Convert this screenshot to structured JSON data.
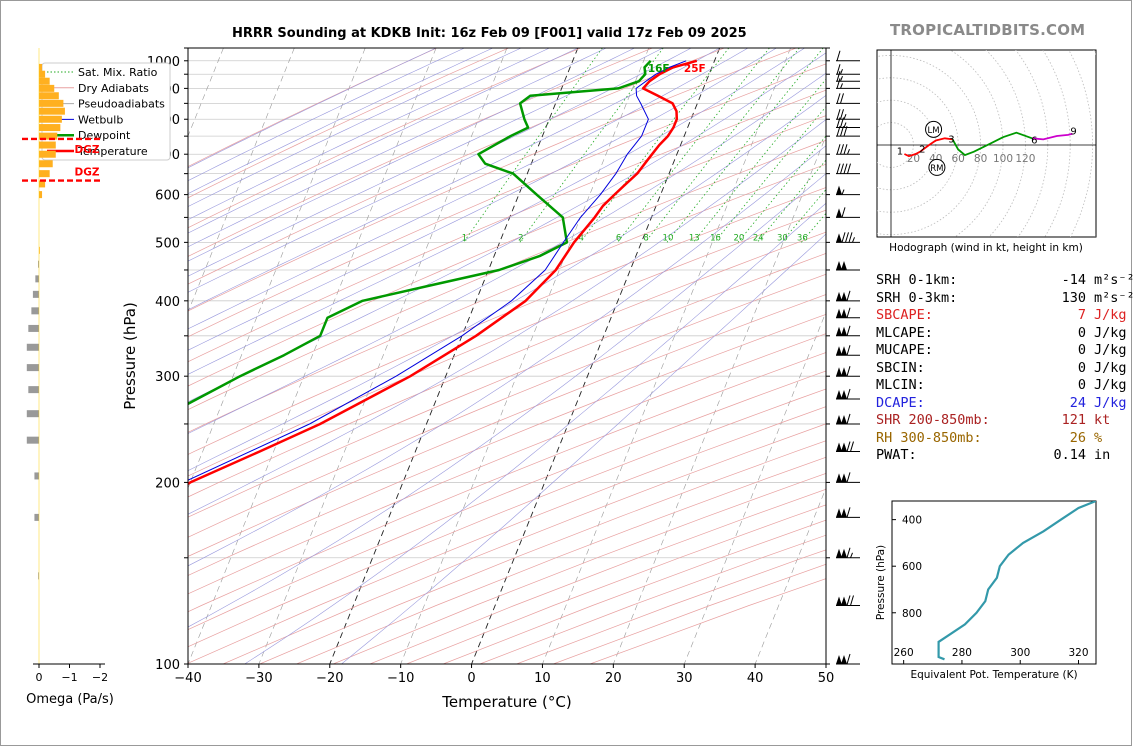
{
  "title": "HRRR Sounding at KDKB Init: 16z Feb 09 [F001] valid 17z Feb 09 2025",
  "brand": "TROPICALTIDBITS.COM",
  "chart_data": [
    {
      "type": "line",
      "name": "skew-t",
      "xlabel": "Temperature (°C)",
      "ylabel": "Pressure (hPa)",
      "xlim": [
        -40,
        50
      ],
      "ylim": [
        1050,
        100
      ],
      "y_scale": "log",
      "x_ticks": [
        "−40",
        "−30",
        "−20",
        "−10",
        "0",
        "10",
        "20",
        "30",
        "40",
        "50"
      ],
      "y_ticks": [
        1000,
        900,
        800,
        700,
        600,
        500,
        400,
        300,
        200,
        100
      ],
      "legend": [
        "Sat. Mix. Ratio",
        "Dry Adiabats",
        "Pseudoadiabats",
        "Wetbulb",
        "Dewpoint",
        "Temperature"
      ],
      "legend_position": "top-left",
      "mixing_ratio_labels": [
        "1",
        "2",
        "4",
        "6",
        "8",
        "10",
        "13",
        "16",
        "20",
        "24",
        "30",
        "36"
      ],
      "surface_labels": {
        "dewpoint": "16F",
        "temperature": "25F"
      },
      "series": [
        {
          "name": "Temperature",
          "color": "#ff0000",
          "points": [
            [
              1000,
              -2.5
            ],
            [
              975,
              -5.5
            ],
            [
              950,
              -7.0
            ],
            [
              925,
              -8.0
            ],
            [
              900,
              -8.5
            ],
            [
              875,
              -6.0
            ],
            [
              850,
              -3.5
            ],
            [
              825,
              -2.5
            ],
            [
              800,
              -2.0
            ],
            [
              775,
              -2.0
            ],
            [
              750,
              -2.3
            ],
            [
              725,
              -3.0
            ],
            [
              700,
              -3.5
            ],
            [
              675,
              -4.0
            ],
            [
              650,
              -4.5
            ],
            [
              625,
              -5.5
            ],
            [
              600,
              -6.5
            ],
            [
              575,
              -7.5
            ],
            [
              550,
              -8.0
            ],
            [
              500,
              -9.5
            ],
            [
              450,
              -10.5
            ],
            [
              400,
              -13.0
            ],
            [
              350,
              -18.0
            ],
            [
              300,
              -25.0
            ],
            [
              250,
              -35.0
            ],
            [
              225,
              -42.0
            ],
            [
              200,
              -50.0
            ],
            [
              175,
              -56.0
            ],
            [
              150,
              -60.0
            ],
            [
              125,
              -65.0
            ],
            [
              100,
              -70.0
            ]
          ]
        },
        {
          "name": "Dewpoint",
          "color": "#009900",
          "points": [
            [
              1000,
              -9.0
            ],
            [
              975,
              -9.5
            ],
            [
              950,
              -9.0
            ],
            [
              925,
              -9.5
            ],
            [
              900,
              -12.0
            ],
            [
              875,
              -24.0
            ],
            [
              850,
              -25.0
            ],
            [
              800,
              -23.5
            ],
            [
              775,
              -22.5
            ],
            [
              750,
              -24.5
            ],
            [
              700,
              -28.0
            ],
            [
              675,
              -26.5
            ],
            [
              650,
              -22.0
            ],
            [
              600,
              -17.5
            ],
            [
              550,
              -12.5
            ],
            [
              500,
              -10.5
            ],
            [
              475,
              -13.5
            ],
            [
              450,
              -18.5
            ],
            [
              425,
              -27.0
            ],
            [
              400,
              -36.0
            ],
            [
              375,
              -40.0
            ],
            [
              350,
              -40.0
            ],
            [
              325,
              -44.0
            ],
            [
              300,
              -49.0
            ],
            [
              250,
              -59.0
            ],
            [
              225,
              -68.0
            ],
            [
              200,
              -70.0
            ],
            [
              175,
              -76.0
            ],
            [
              150,
              -82.0
            ],
            [
              125,
              -86.0
            ],
            [
              100,
              -89.0
            ]
          ]
        },
        {
          "name": "Wetbulb",
          "color": "#0000dd",
          "points": [
            [
              1000,
              -4.0
            ],
            [
              975,
              -6.0
            ],
            [
              950,
              -7.5
            ],
            [
              925,
              -8.5
            ],
            [
              900,
              -9.5
            ],
            [
              875,
              -9.0
            ],
            [
              850,
              -8.0
            ],
            [
              800,
              -6.0
            ],
            [
              750,
              -6.0
            ],
            [
              700,
              -7.0
            ],
            [
              650,
              -7.5
            ],
            [
              600,
              -8.5
            ],
            [
              550,
              -10.0
            ],
            [
              500,
              -11.0
            ],
            [
              450,
              -12.0
            ],
            [
              400,
              -15.0
            ],
            [
              350,
              -20.0
            ],
            [
              300,
              -27.0
            ],
            [
              250,
              -36.5
            ],
            [
              200,
              -51.0
            ],
            [
              150,
              -61.0
            ],
            [
              100,
              -70.5
            ]
          ]
        }
      ]
    },
    {
      "type": "line",
      "name": "hodograph",
      "xlabel": "Hodograph (wind in kt, height in km)",
      "x_ticks": [
        "20",
        "40",
        "60",
        "80",
        "100",
        "120"
      ],
      "markers": [
        "LM",
        "RM"
      ],
      "height_labels": [
        "1",
        "2",
        "3",
        "6",
        "9"
      ],
      "series": [
        {
          "name": "0-1km",
          "color": "#ff0000",
          "points": [
            [
              12,
              -8
            ],
            [
              16,
              -10
            ],
            [
              22,
              -8
            ],
            [
              26,
              -6
            ]
          ]
        },
        {
          "name": "1-3km",
          "color": "#ff0000",
          "points": [
            [
              26,
              -6
            ],
            [
              34,
              0
            ],
            [
              40,
              4
            ],
            [
              48,
              6
            ],
            [
              55,
              5
            ]
          ]
        },
        {
          "name": "3-6km",
          "color": "#009900",
          "points": [
            [
              55,
              5
            ],
            [
              60,
              -4
            ],
            [
              66,
              -9
            ],
            [
              74,
              -6
            ],
            [
              88,
              1
            ],
            [
              100,
              7
            ],
            [
              112,
              11
            ],
            [
              126,
              6
            ]
          ]
        },
        {
          "name": "6-9km",
          "color": "#cc00cc",
          "points": [
            [
              126,
              6
            ],
            [
              136,
              5
            ],
            [
              148,
              8
            ],
            [
              158,
              9
            ],
            [
              162,
              10
            ]
          ]
        }
      ]
    },
    {
      "type": "line",
      "name": "theta-e",
      "xlabel": "Equivalent Pot. Temperature (K)",
      "ylabel": "Pressure (hPa)",
      "x_ticks": [
        "260",
        "280",
        "300",
        "320"
      ],
      "y_ticks": [
        "400",
        "600",
        "800"
      ],
      "xlim": [
        256,
        326
      ],
      "ylim": [
        1020,
        320
      ],
      "series": [
        {
          "name": "theta-e",
          "color": "#3399aa",
          "points": [
            [
              1000,
              274
            ],
            [
              990,
              272
            ],
            [
              950,
              272
            ],
            [
              925,
              272
            ],
            [
              900,
              275
            ],
            [
              850,
              281
            ],
            [
              800,
              285
            ],
            [
              750,
              288
            ],
            [
              700,
              289
            ],
            [
              650,
              292
            ],
            [
              600,
              293
            ],
            [
              550,
              296
            ],
            [
              500,
              301
            ],
            [
              450,
              308
            ],
            [
              400,
              314
            ],
            [
              350,
              320
            ],
            [
              320,
              326
            ]
          ]
        }
      ]
    },
    {
      "type": "bar",
      "name": "omega",
      "xlabel": "Omega (Pa/s)",
      "x_ticks": [
        "0",
        "−1",
        "−2"
      ],
      "dgz_label": "DGZ",
      "bars": [
        {
          "p": 140,
          "value": 0.02
        },
        {
          "p": 175,
          "value": 0.15
        },
        {
          "p": 205,
          "value": 0.15
        },
        {
          "p": 235,
          "value": 0.4
        },
        {
          "p": 260,
          "value": 0.4
        },
        {
          "p": 285,
          "value": 0.35
        },
        {
          "p": 310,
          "value": 0.4
        },
        {
          "p": 335,
          "value": 0.4
        },
        {
          "p": 360,
          "value": 0.35
        },
        {
          "p": 385,
          "value": 0.25
        },
        {
          "p": 410,
          "value": 0.2
        },
        {
          "p": 435,
          "value": 0.12
        },
        {
          "p": 460,
          "value": 0.03
        },
        {
          "p": 485,
          "value": 0.0
        },
        {
          "p": 600,
          "value": -0.1
        },
        {
          "p": 625,
          "value": -0.2
        },
        {
          "p": 650,
          "value": -0.35
        },
        {
          "p": 675,
          "value": -0.45
        },
        {
          "p": 700,
          "value": -0.55
        },
        {
          "p": 725,
          "value": -0.55
        },
        {
          "p": 750,
          "value": -0.6
        },
        {
          "p": 775,
          "value": -0.7
        },
        {
          "p": 800,
          "value": -0.75
        },
        {
          "p": 825,
          "value": -0.85
        },
        {
          "p": 850,
          "value": -0.8
        },
        {
          "p": 875,
          "value": -0.65
        },
        {
          "p": 900,
          "value": -0.5
        },
        {
          "p": 925,
          "value": -0.35
        },
        {
          "p": 950,
          "value": -0.2
        },
        {
          "p": 975,
          "value": -0.1
        }
      ],
      "dgz_pressures": [
        633,
        742
      ]
    }
  ],
  "indices": [
    {
      "label": "SRH 0-1km:",
      "value": "-14",
      "unit": "m²s⁻²",
      "color": "#000000"
    },
    {
      "label": "SRH 0-3km:",
      "value": "130",
      "unit": "m²s⁻²",
      "color": "#000000"
    },
    {
      "label": "SBCAPE:",
      "value": "7",
      "unit": "J/kg",
      "color": "#dd2222"
    },
    {
      "label": "MLCAPE:",
      "value": "0",
      "unit": "J/kg",
      "color": "#000000"
    },
    {
      "label": "MUCAPE:",
      "value": "0",
      "unit": "J/kg",
      "color": "#000000"
    },
    {
      "label": "SBCIN:",
      "value": "0",
      "unit": "J/kg",
      "color": "#000000"
    },
    {
      "label": "MLCIN:",
      "value": "0",
      "unit": "J/kg",
      "color": "#000000"
    },
    {
      "label": "DCAPE:",
      "value": "24",
      "unit": "J/kg",
      "color": "#2222dd"
    },
    {
      "label": "SHR 200-850mb:",
      "value": "121",
      "unit": "kt",
      "color": "#aa2222"
    },
    {
      "label": "RH 300-850mb:",
      "value": "26",
      "unit": "%",
      "color": "#996600"
    },
    {
      "label": "PWAT:",
      "value": "0.14",
      "unit": "in",
      "color": "#000000"
    }
  ],
  "barbs": [
    {
      "p": 100,
      "kt": 110
    },
    {
      "p": 125,
      "kt": 120
    },
    {
      "p": 150,
      "kt": 115
    },
    {
      "p": 175,
      "kt": 110
    },
    {
      "p": 200,
      "kt": 110
    },
    {
      "p": 225,
      "kt": 120
    },
    {
      "p": 250,
      "kt": 110
    },
    {
      "p": 275,
      "kt": 110
    },
    {
      "p": 300,
      "kt": 110
    },
    {
      "p": 325,
      "kt": 110
    },
    {
      "p": 350,
      "kt": 110
    },
    {
      "p": 375,
      "kt": 110
    },
    {
      "p": 400,
      "kt": 110
    },
    {
      "p": 450,
      "kt": 100
    },
    {
      "p": 500,
      "kt": 85
    },
    {
      "p": 550,
      "kt": 60
    },
    {
      "p": 600,
      "kt": 55
    },
    {
      "p": 650,
      "kt": 40
    },
    {
      "p": 700,
      "kt": 35
    },
    {
      "p": 750,
      "kt": 30
    },
    {
      "p": 775,
      "kt": 25
    },
    {
      "p": 800,
      "kt": 25
    },
    {
      "p": 850,
      "kt": 20
    },
    {
      "p": 900,
      "kt": 15
    },
    {
      "p": 925,
      "kt": 15
    },
    {
      "p": 950,
      "kt": 15
    },
    {
      "p": 1000,
      "kt": 10
    }
  ]
}
